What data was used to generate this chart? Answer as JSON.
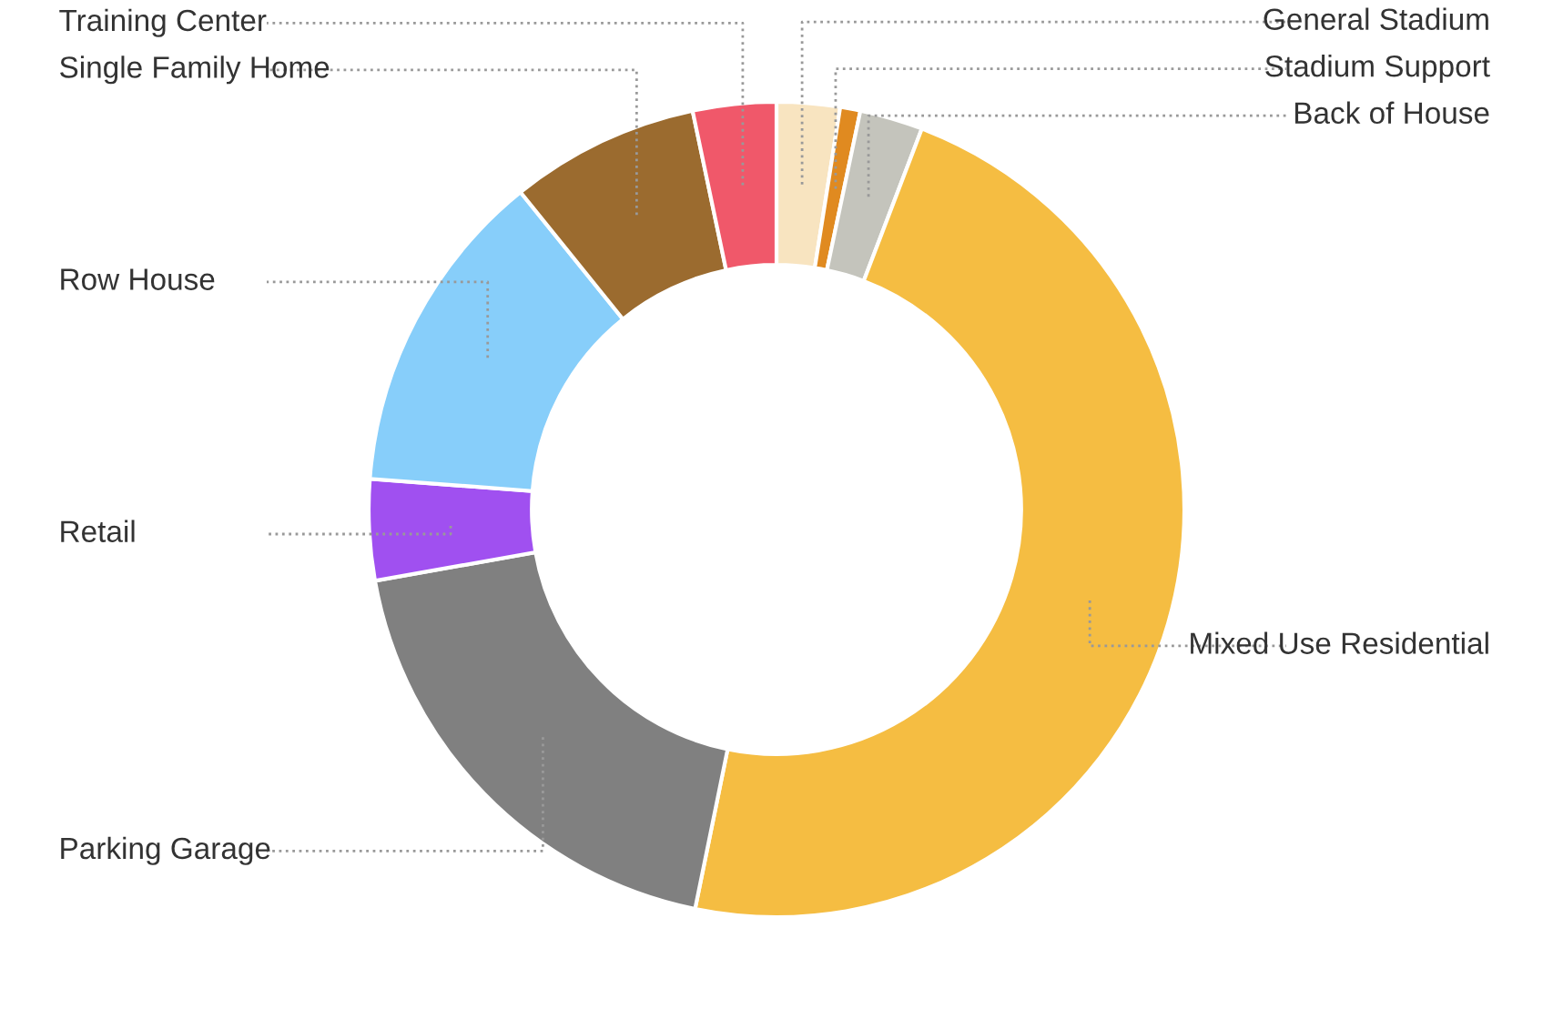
{
  "chart_data": {
    "type": "donut",
    "categories": [
      "General Stadium",
      "Stadium Support",
      "Back of House",
      "Mixed Use Residential",
      "Parking Garage",
      "Retail",
      "Row House",
      "Single Family Home",
      "Training Center"
    ],
    "values": [
      2.5,
      0.8,
      2.5,
      47.4,
      19,
      4,
      13,
      7.5,
      3.3
    ],
    "colors": [
      "#f8e4c0",
      "#e08a20",
      "#c4c4bc",
      "#f5bd42",
      "#808080",
      "#a050f0",
      "#87cefa",
      "#9b6b2f",
      "#f0586a"
    ],
    "legend": false
  }
}
